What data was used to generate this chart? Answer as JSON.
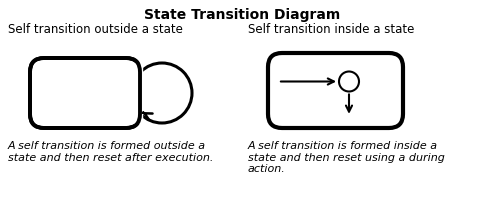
{
  "title": "State Transition Diagram",
  "title_fontsize": 10,
  "title_fontweight": "bold",
  "left_label": "Self transition outside a state",
  "right_label": "Self transition inside a state",
  "left_caption": "A self transition is formed outside a\nstate and then reset after execution.",
  "right_caption": "A self transition is formed inside a\nstate and then reset using a during\naction.",
  "bg_color": "#ffffff",
  "shape_color": "#000000",
  "label_fontsize": 8.5,
  "caption_fontsize": 8.0
}
